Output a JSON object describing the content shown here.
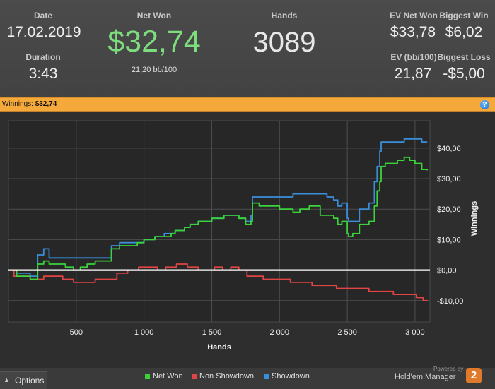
{
  "header": {
    "date_label": "Date",
    "date_value": "17.02.2019",
    "duration_label": "Duration",
    "duration_value": "3:43",
    "net_won_label": "Net Won",
    "net_won_value": "$32,74",
    "net_won_sub": "21,20 bb/100",
    "hands_label": "Hands",
    "hands_value": "3089",
    "ev_net_won_label": "EV Net Won",
    "ev_net_won_value": "$33,78",
    "biggest_win_label": "Biggest Win",
    "biggest_win_value": "$6,02",
    "ev_bb100_label": "EV (bb/100)",
    "ev_bb100_value": "21,87",
    "biggest_loss_label": "Biggest Loss",
    "biggest_loss_value": "-$5,00"
  },
  "banner": {
    "label": "Winnings:",
    "value": "$32,74",
    "help_icon": "help-icon"
  },
  "footer": {
    "options_label": "Options",
    "options_icon": "caret-up-icon",
    "powered_by": "Powered by",
    "brand": "Hold'em Manager",
    "brand_logo_text": "2"
  },
  "colors": {
    "net_won": "#3ad43a",
    "non_showdown": "#e04444",
    "showdown": "#3a8fdc",
    "banner": "#f6a93b",
    "net_won_header": "#7ddc7d"
  },
  "chart_data": {
    "type": "line",
    "xlabel": "Hands",
    "ylabel": "Winnings",
    "xlim": [
      0,
      3110
    ],
    "ylim": [
      -17,
      49
    ],
    "x_ticks": [
      500,
      1000,
      1500,
      2000,
      2500,
      3000
    ],
    "x_tick_labels": [
      "500",
      "1 000",
      "1 500",
      "2 000",
      "2 500",
      "3 000"
    ],
    "y_ticks": [
      -10,
      0,
      10,
      20,
      30,
      40
    ],
    "y_tick_labels": [
      "-$10,00",
      "$0,00",
      "$10,00",
      "$20,00",
      "$30,00",
      "$40,00"
    ],
    "grid": true,
    "legend_position": "bottom",
    "series": [
      {
        "name": "Net Won",
        "color": "#3ad43a",
        "x": [
          0,
          60,
          110,
          160,
          200,
          215,
          260,
          300,
          360,
          420,
          480,
          530,
          580,
          640,
          700,
          750,
          760,
          820,
          880,
          950,
          1000,
          1020,
          1080,
          1150,
          1200,
          1230,
          1300,
          1340,
          1400,
          1450,
          1500,
          1550,
          1590,
          1650,
          1700,
          1750,
          1790,
          1800,
          1850,
          1900,
          2000,
          2100,
          2150,
          2220,
          2300,
          2350,
          2400,
          2430,
          2460,
          2500,
          2510,
          2540,
          2590,
          2630,
          2660,
          2690,
          2700,
          2720,
          2740,
          2750,
          2780,
          2820,
          2870,
          2920,
          2960,
          3000,
          3050,
          3090
        ],
        "y": [
          0,
          -2,
          -2,
          -3,
          -3,
          2,
          3,
          2,
          2,
          1,
          0,
          1,
          2,
          3,
          3,
          3,
          7,
          8,
          8,
          9,
          10,
          10,
          11,
          11,
          12,
          13,
          14,
          15,
          16,
          16,
          17,
          17,
          18,
          18,
          17,
          15,
          16,
          22,
          21,
          21,
          20,
          19,
          20,
          21,
          18,
          18,
          17,
          15,
          16,
          12,
          11,
          12,
          15,
          15,
          16,
          16,
          21,
          26,
          29,
          34,
          35,
          35,
          36,
          37,
          36,
          35,
          33,
          32.7
        ]
      },
      {
        "name": "Non Showdown",
        "color": "#e04444",
        "x": [
          0,
          40,
          100,
          160,
          200,
          260,
          320,
          400,
          480,
          560,
          640,
          720,
          800,
          880,
          960,
          1040,
          1100,
          1160,
          1240,
          1320,
          1400,
          1460,
          1520,
          1580,
          1640,
          1700,
          1760,
          1820,
          1880,
          1940,
          2000,
          2080,
          2160,
          2240,
          2300,
          2360,
          2420,
          2480,
          2540,
          2600,
          2660,
          2720,
          2780,
          2840,
          2900,
          2960,
          3010,
          3060,
          3090
        ],
        "y": [
          0,
          -2,
          -2,
          -3,
          -3,
          -2,
          -2,
          -3,
          -4,
          -4,
          -3,
          -3,
          -1,
          0,
          1,
          1,
          0,
          1,
          2,
          1,
          0,
          0,
          1,
          0,
          1,
          0,
          -2,
          -2,
          -3,
          -3,
          -3,
          -4,
          -4,
          -5,
          -5,
          -5,
          -6,
          -6,
          -6,
          -6,
          -7,
          -7,
          -7,
          -8,
          -8,
          -8,
          -9,
          -10,
          -10.2
        ]
      },
      {
        "name": "Showdown",
        "color": "#3a8fdc",
        "x": [
          0,
          60,
          110,
          160,
          200,
          215,
          260,
          300,
          360,
          420,
          480,
          530,
          580,
          640,
          700,
          750,
          760,
          820,
          880,
          950,
          1000,
          1020,
          1080,
          1150,
          1200,
          1230,
          1300,
          1340,
          1400,
          1450,
          1500,
          1550,
          1590,
          1650,
          1700,
          1750,
          1790,
          1800,
          1850,
          1900,
          2000,
          2100,
          2150,
          2220,
          2300,
          2350,
          2400,
          2430,
          2460,
          2500,
          2510,
          2540,
          2590,
          2630,
          2660,
          2690,
          2700,
          2720,
          2740,
          2750,
          2780,
          2820,
          2870,
          2920,
          2960,
          3000,
          3050,
          3090
        ],
        "y": [
          0,
          -1,
          -1,
          -2,
          -2,
          5,
          7,
          4,
          4,
          4,
          4,
          4,
          4,
          4,
          4,
          4,
          8,
          9,
          9,
          9,
          10,
          10,
          11,
          12,
          12,
          13,
          14,
          15,
          16,
          16,
          17,
          17,
          18,
          18,
          17,
          16,
          18,
          24,
          24,
          24,
          24,
          25,
          25,
          25,
          25,
          24,
          23,
          21,
          22,
          17,
          16,
          16,
          20,
          20,
          22,
          22,
          29,
          34,
          39,
          42,
          42,
          42,
          42,
          43,
          43,
          43,
          42,
          42
        ]
      }
    ]
  }
}
